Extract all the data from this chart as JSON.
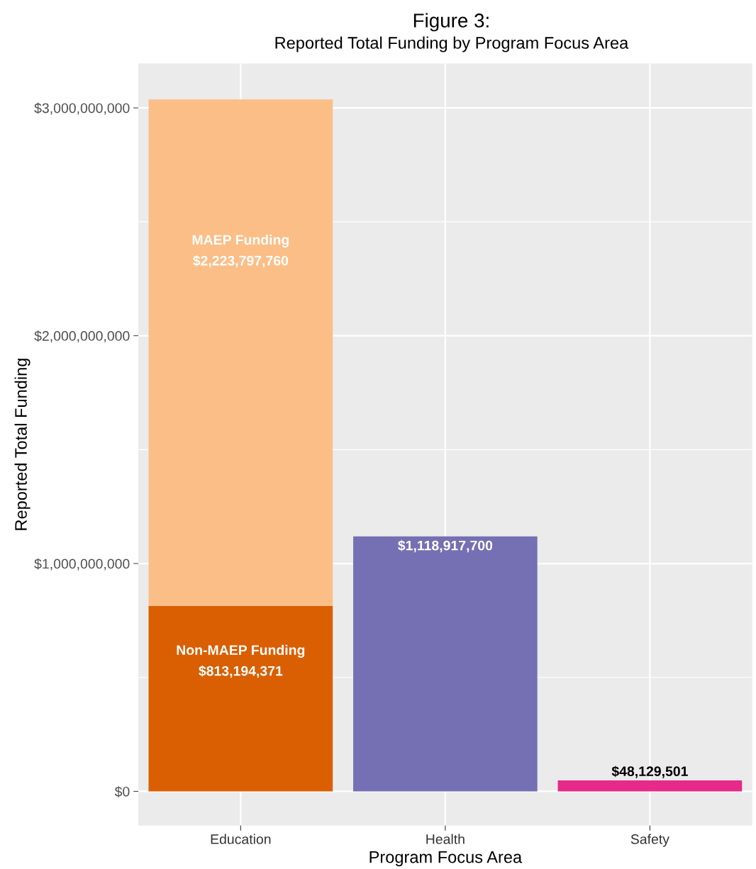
{
  "chart_data": {
    "type": "bar",
    "title": "Figure 3:",
    "subtitle": "Reported Total Funding by Program Focus Area",
    "xlabel": "Program Focus Area",
    "ylabel": "Reported Total Funding",
    "categories": [
      "Education",
      "Health",
      "Safety"
    ],
    "stacked": true,
    "series": [
      {
        "name": "Non-MAEP Funding",
        "color": "#d95f02",
        "values": [
          813194371,
          null,
          null
        ],
        "value_labels": [
          "$813,194,371",
          null,
          null
        ]
      },
      {
        "name": "MAEP Funding",
        "color": "#fbbe87",
        "values": [
          2223797760,
          null,
          null
        ],
        "value_labels": [
          "$2,223,797,760",
          null,
          null
        ]
      },
      {
        "color": "#7570b3",
        "values": [
          null,
          1118917700,
          null
        ],
        "value_labels": [
          null,
          "$1,118,917,700",
          null
        ]
      },
      {
        "color": "#e7298a",
        "values": [
          null,
          null,
          48129501
        ],
        "value_labels": [
          null,
          null,
          "$48,129,501"
        ]
      }
    ],
    "ylim": [
      -150000000,
      3195000000
    ],
    "yticks": [
      {
        "value": 0,
        "label": "$0"
      },
      {
        "value": 1000000000,
        "label": "$1,000,000,000"
      },
      {
        "value": 2000000000,
        "label": "$2,000,000,000"
      },
      {
        "value": 3000000000,
        "label": "$3,000,000,000"
      }
    ],
    "grid": true
  }
}
